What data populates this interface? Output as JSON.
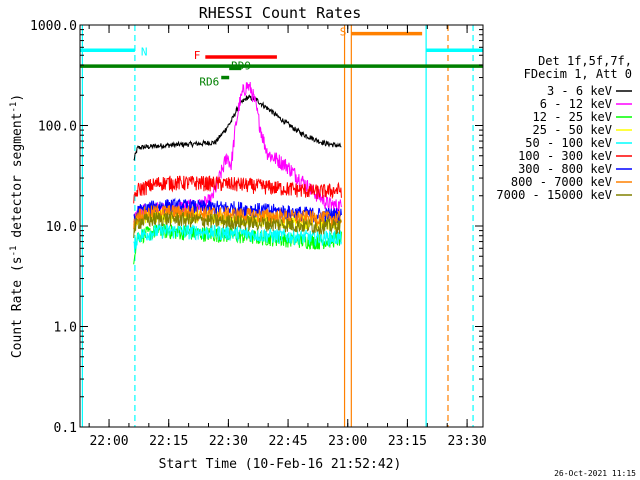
{
  "chart_data": {
    "type": "line",
    "title": "RHESSI Count Rates",
    "xlabel": "Start Time (10-Feb-16 21:52:42)",
    "ylabel": "Count Rate (s⁻¹ detector segment⁻¹)",
    "ylabel_main": "Count Rate (s",
    "ylabel_sup1": "-1",
    "ylabel_mid": " detector segment",
    "ylabel_sup2": "-1",
    "ylabel_end": ")",
    "yscale": "log",
    "ylim": [
      0.1,
      1000
    ],
    "xlim_minutes": [
      0,
      101.3
    ],
    "y_tick_labels": [
      "0.1",
      "1.0",
      "10.0",
      "100.0",
      "1000.0"
    ],
    "x_ticks": [
      {
        "label": "22:00",
        "minute": 7.3
      },
      {
        "label": "22:15",
        "minute": 22.3
      },
      {
        "label": "22:30",
        "minute": 37.3
      },
      {
        "label": "22:45",
        "minute": 52.3
      },
      {
        "label": "23:00",
        "minute": 67.3
      },
      {
        "label": "23:15",
        "minute": 82.3
      },
      {
        "label": "23:30",
        "minute": 97.3
      }
    ],
    "grid": false,
    "legend_position": "right",
    "legend_header": [
      "Det 1f,5f,7f,",
      "FDecim 1, Att 0"
    ],
    "series": [
      {
        "name": "3 - 6 keV",
        "color": "#000000",
        "start": 13.5,
        "end": 65.8,
        "values": [
          [
            13.5,
            45
          ],
          [
            14.5,
            60
          ],
          [
            20,
            63
          ],
          [
            30,
            66
          ],
          [
            34,
            68
          ],
          [
            36,
            85
          ],
          [
            38,
            110
          ],
          [
            40,
            160
          ],
          [
            42,
            190
          ],
          [
            44,
            185
          ],
          [
            46,
            160
          ],
          [
            48,
            140
          ],
          [
            50,
            120
          ],
          [
            52,
            105
          ],
          [
            54,
            92
          ],
          [
            56,
            82
          ],
          [
            58,
            76
          ],
          [
            60,
            70
          ],
          [
            62,
            66
          ],
          [
            64,
            64
          ],
          [
            65.8,
            62
          ]
        ]
      },
      {
        "name": "6 - 12 keV",
        "color": "#ff00ff",
        "start": 13.5,
        "end": 65.8,
        "values": [
          [
            13.5,
            10
          ],
          [
            14.5,
            14
          ],
          [
            20,
            15
          ],
          [
            30,
            16
          ],
          [
            33,
            18
          ],
          [
            35,
            30
          ],
          [
            37,
            50
          ],
          [
            38,
            40
          ],
          [
            39,
            90
          ],
          [
            40,
            160
          ],
          [
            41,
            220
          ],
          [
            42,
            250
          ],
          [
            43,
            230
          ],
          [
            44,
            170
          ],
          [
            45,
            110
          ],
          [
            46,
            75
          ],
          [
            47,
            55
          ],
          [
            48,
            50
          ],
          [
            50,
            45
          ],
          [
            52,
            40
          ],
          [
            54,
            33
          ],
          [
            56,
            28
          ],
          [
            58,
            23
          ],
          [
            60,
            20
          ],
          [
            62,
            17
          ],
          [
            64,
            16
          ],
          [
            65.8,
            16
          ]
        ]
      },
      {
        "name": "12 - 25 keV",
        "color": "#00ff00",
        "start": 13.5,
        "end": 65.8,
        "values": [
          [
            13.5,
            5
          ],
          [
            14.5,
            8
          ],
          [
            20,
            9
          ],
          [
            30,
            8.5
          ],
          [
            40,
            8
          ],
          [
            50,
            7.5
          ],
          [
            60,
            7
          ],
          [
            65.8,
            7.5
          ]
        ]
      },
      {
        "name": "25 - 50 keV",
        "color": "#ffff00",
        "start": 13.5,
        "end": 65.8,
        "values": [
          [
            13.5,
            9
          ],
          [
            14.5,
            12
          ],
          [
            20,
            13
          ],
          [
            30,
            12.5
          ],
          [
            40,
            12
          ],
          [
            50,
            11.5
          ],
          [
            60,
            11
          ],
          [
            65.8,
            11
          ]
        ]
      },
      {
        "name": "50 - 100 keV",
        "color": "#00ffff",
        "start": 13.5,
        "end": 65.8,
        "values": [
          [
            13.5,
            6
          ],
          [
            14.5,
            8
          ],
          [
            20,
            9
          ],
          [
            30,
            8.8
          ],
          [
            40,
            8.5
          ],
          [
            50,
            8
          ],
          [
            60,
            7.7
          ],
          [
            65.8,
            7.7
          ]
        ]
      },
      {
        "name": "100 - 300 keV",
        "color": "#ff0000",
        "start": 13.5,
        "end": 65.8,
        "values": [
          [
            13.5,
            17
          ],
          [
            14.5,
            23
          ],
          [
            20,
            27
          ],
          [
            30,
            27
          ],
          [
            40,
            26
          ],
          [
            50,
            24
          ],
          [
            60,
            22
          ],
          [
            65.8,
            23
          ]
        ]
      },
      {
        "name": "300 - 800 keV",
        "color": "#0000ff",
        "start": 13.5,
        "end": 65.8,
        "values": [
          [
            13.5,
            11
          ],
          [
            14.5,
            14
          ],
          [
            20,
            16
          ],
          [
            30,
            15.5
          ],
          [
            40,
            15
          ],
          [
            50,
            14
          ],
          [
            60,
            13
          ],
          [
            65.8,
            13
          ]
        ]
      },
      {
        "name": "800 - 7000 keV",
        "color": "#ff8000",
        "start": 13.5,
        "end": 65.8,
        "values": [
          [
            13.5,
            10
          ],
          [
            14.5,
            13
          ],
          [
            20,
            14
          ],
          [
            30,
            13.5
          ],
          [
            40,
            13
          ],
          [
            50,
            12.5
          ],
          [
            60,
            12
          ],
          [
            65.8,
            12
          ]
        ]
      },
      {
        "name": "7000 - 15000 keV",
        "color": "#808000",
        "start": 13.5,
        "end": 65.8,
        "values": [
          [
            13.5,
            9
          ],
          [
            14.5,
            11
          ],
          [
            20,
            12
          ],
          [
            30,
            11.5
          ],
          [
            40,
            11
          ],
          [
            50,
            10.5
          ],
          [
            60,
            10
          ],
          [
            65.8,
            10
          ]
        ]
      }
    ],
    "flag_bars": [
      {
        "label": "N",
        "color": "#00ffff",
        "level": 560,
        "start": 0,
        "end": 13.8,
        "label_side": "right"
      },
      {
        "label": "N",
        "color": "#00ffff",
        "level": 560,
        "start": 87,
        "end": 101.3,
        "label_side": "none"
      },
      {
        "label": "S",
        "color": "#ff8000",
        "level": 820,
        "start": 68.2,
        "end": 86,
        "label_side": "left"
      },
      {
        "label": "F",
        "color": "#ff0000",
        "level": 480,
        "start": 31.5,
        "end": 49.5,
        "label_side": "left"
      },
      {
        "label": "RD9",
        "color": "#008000",
        "level": 370,
        "start": 37.5,
        "end": 40.5,
        "label_side": "right-above"
      },
      {
        "label": "RD6",
        "color": "#008000",
        "level": 300,
        "start": 35.5,
        "end": 37.5,
        "label_side": "left-below"
      },
      {
        "label": "",
        "color": "#008000",
        "level": 390,
        "start": 0,
        "end": 101.3,
        "label_side": "none"
      }
    ],
    "vertical_lines": [
      {
        "minute": 0.6,
        "color": "#00ffff",
        "style": "solid"
      },
      {
        "minute": 13.8,
        "color": "#00ffff",
        "style": "dashed"
      },
      {
        "minute": 87.0,
        "color": "#00ffff",
        "style": "solid"
      },
      {
        "minute": 98.8,
        "color": "#00ffff",
        "style": "dashed"
      },
      {
        "minute": 66.5,
        "color": "#ff8000",
        "style": "solid"
      },
      {
        "minute": 68.2,
        "color": "#ff8000",
        "style": "solid"
      },
      {
        "minute": 92.5,
        "color": "#ff8000",
        "style": "dashed"
      }
    ],
    "footer_date": "26-Oct-2021 11:15"
  }
}
